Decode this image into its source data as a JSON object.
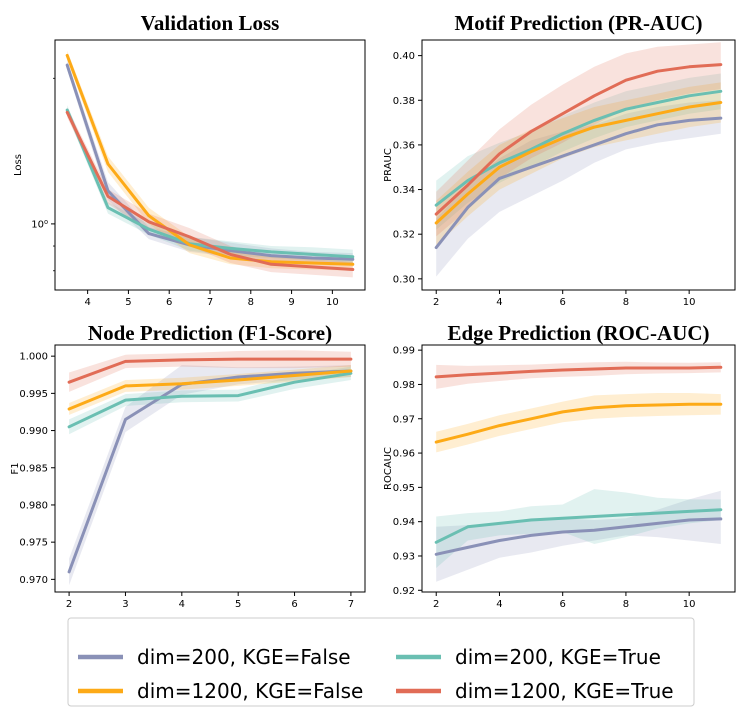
{
  "colors": {
    "s200F": "#8a91b7",
    "s200T": "#6abfb2",
    "s1200F": "#fdaa17",
    "s1200T": "#e16c56"
  },
  "legend": {
    "items": [
      {
        "key": "s200F",
        "label": "dim=200, KGE=False"
      },
      {
        "key": "s200T",
        "label": "dim=200, KGE=True"
      },
      {
        "key": "s1200F",
        "label": "dim=1200, KGE=False"
      },
      {
        "key": "s1200T",
        "label": "dim=1200, KGE=True"
      }
    ]
  },
  "chart_data": [
    {
      "id": "val",
      "type": "line",
      "title": "Validation Loss",
      "ylabel": "Loss",
      "yscale": "log",
      "xlim": [
        3.2,
        10.8
      ],
      "ylim": [
        0.73,
        2.4
      ],
      "xticks": [
        4,
        5,
        6,
        7,
        8,
        9,
        10
      ],
      "xtick_labels": [
        "4",
        "5",
        "6",
        "7",
        "8",
        "9",
        "10"
      ],
      "yticks": [
        1.0
      ],
      "ytick_labels": [
        "10⁰"
      ],
      "x": [
        3.5,
        4.5,
        5.5,
        6.5,
        7.5,
        8.5,
        9.5,
        10.5
      ],
      "series": [
        {
          "key": "s200F",
          "name": "dim=200, KGE=False",
          "values": [
            2.13,
            1.17,
            0.955,
            0.905,
            0.88,
            0.86,
            0.85,
            0.845
          ],
          "lower": [
            2.08,
            1.12,
            0.93,
            0.875,
            0.855,
            0.84,
            0.83,
            0.825
          ],
          "upper": [
            2.18,
            1.22,
            0.985,
            0.94,
            0.915,
            0.89,
            0.875,
            0.87
          ]
        },
        {
          "key": "s200T",
          "name": "dim=200, KGE=True",
          "values": [
            1.72,
            1.08,
            0.975,
            0.91,
            0.89,
            0.875,
            0.865,
            0.855
          ],
          "lower": [
            1.68,
            1.05,
            0.95,
            0.88,
            0.86,
            0.85,
            0.84,
            0.83
          ],
          "upper": [
            1.76,
            1.11,
            1.0,
            0.94,
            0.92,
            0.9,
            0.895,
            0.885
          ]
        },
        {
          "key": "s1200F",
          "name": "dim=1200, KGE=False",
          "values": [
            2.23,
            1.33,
            1.04,
            0.905,
            0.85,
            0.835,
            0.83,
            0.825
          ],
          "lower": [
            2.18,
            1.28,
            1.0,
            0.87,
            0.825,
            0.81,
            0.805,
            0.8
          ],
          "upper": [
            2.28,
            1.38,
            1.08,
            0.94,
            0.875,
            0.86,
            0.855,
            0.85
          ]
        },
        {
          "key": "s1200T",
          "name": "dim=1200, KGE=True",
          "values": [
            1.7,
            1.14,
            1.01,
            0.94,
            0.865,
            0.825,
            0.815,
            0.805
          ],
          "lower": [
            1.66,
            1.1,
            0.97,
            0.9,
            0.83,
            0.795,
            0.785,
            0.775
          ],
          "upper": [
            1.74,
            1.18,
            1.05,
            0.98,
            0.9,
            0.855,
            0.845,
            0.835
          ]
        }
      ]
    },
    {
      "id": "motif",
      "type": "line",
      "title": "Motif Prediction (PR-AUC)",
      "ylabel": "PRAUC",
      "yscale": "linear",
      "xlim": [
        1.55,
        11.45
      ],
      "ylim": [
        0.295,
        0.407
      ],
      "xticks": [
        2,
        4,
        6,
        8,
        10
      ],
      "xtick_labels": [
        "2",
        "4",
        "6",
        "8",
        "10"
      ],
      "yticks": [
        0.3,
        0.32,
        0.34,
        0.36,
        0.38,
        0.4
      ],
      "ytick_labels": [
        "0.30",
        "0.32",
        "0.34",
        "0.36",
        "0.38",
        "0.40"
      ],
      "x": [
        2,
        3,
        4,
        5,
        6,
        7,
        8,
        9,
        10,
        11
      ],
      "series": [
        {
          "key": "s200F",
          "name": "dim=200, KGE=False",
          "values": [
            0.314,
            0.332,
            0.345,
            0.35,
            0.355,
            0.36,
            0.365,
            0.369,
            0.371,
            0.372
          ],
          "lower": [
            0.301,
            0.318,
            0.33,
            0.337,
            0.344,
            0.352,
            0.358,
            0.361,
            0.363,
            0.365
          ],
          "upper": [
            0.327,
            0.342,
            0.354,
            0.362,
            0.366,
            0.369,
            0.374,
            0.377,
            0.379,
            0.38
          ]
        },
        {
          "key": "s200T",
          "name": "dim=200, KGE=True",
          "values": [
            0.333,
            0.344,
            0.352,
            0.358,
            0.365,
            0.371,
            0.376,
            0.379,
            0.382,
            0.384
          ],
          "lower": [
            0.322,
            0.334,
            0.343,
            0.35,
            0.357,
            0.363,
            0.368,
            0.371,
            0.374,
            0.376
          ],
          "upper": [
            0.344,
            0.355,
            0.361,
            0.366,
            0.373,
            0.379,
            0.384,
            0.387,
            0.39,
            0.392
          ]
        },
        {
          "key": "s1200F",
          "name": "dim=1200, KGE=False",
          "values": [
            0.325,
            0.338,
            0.35,
            0.357,
            0.363,
            0.368,
            0.371,
            0.374,
            0.377,
            0.379
          ],
          "lower": [
            0.315,
            0.328,
            0.34,
            0.347,
            0.354,
            0.359,
            0.362,
            0.365,
            0.368,
            0.37
          ],
          "upper": [
            0.335,
            0.348,
            0.36,
            0.367,
            0.372,
            0.377,
            0.38,
            0.383,
            0.386,
            0.388
          ]
        },
        {
          "key": "s1200T",
          "name": "dim=1200, KGE=True",
          "values": [
            0.329,
            0.342,
            0.356,
            0.366,
            0.374,
            0.382,
            0.389,
            0.393,
            0.395,
            0.396
          ],
          "lower": [
            0.319,
            0.331,
            0.345,
            0.354,
            0.361,
            0.369,
            0.376,
            0.38,
            0.383,
            0.385
          ],
          "upper": [
            0.339,
            0.353,
            0.367,
            0.378,
            0.387,
            0.395,
            0.401,
            0.404,
            0.405,
            0.406
          ]
        }
      ]
    },
    {
      "id": "node",
      "type": "line",
      "title": "Node Prediction (F1-Score)",
      "ylabel": "F1",
      "yscale": "linear",
      "xlim": [
        1.75,
        7.25
      ],
      "ylim": [
        0.9683,
        1.0015
      ],
      "xticks": [
        2,
        3,
        4,
        5,
        6,
        7
      ],
      "xtick_labels": [
        "2",
        "3",
        "4",
        "5",
        "6",
        "7"
      ],
      "yticks": [
        0.97,
        0.975,
        0.98,
        0.985,
        0.99,
        0.995,
        1.0
      ],
      "ytick_labels": [
        "0.970",
        "0.975",
        "0.980",
        "0.985",
        "0.990",
        "0.995",
        "1.000"
      ],
      "x": [
        2,
        3,
        4,
        5,
        6,
        7
      ],
      "series": [
        {
          "key": "s200F",
          "name": "dim=200, KGE=False",
          "values": [
            0.971,
            0.9915,
            0.9962,
            0.9972,
            0.9977,
            0.998
          ],
          "lower": [
            0.9692,
            0.9898,
            0.9948,
            0.9962,
            0.9968,
            0.9972
          ],
          "upper": [
            0.9728,
            0.9932,
            0.9988,
            0.9985,
            0.9986,
            0.9988
          ]
        },
        {
          "key": "s200T",
          "name": "dim=200, KGE=True",
          "values": [
            0.9905,
            0.9941,
            0.9946,
            0.9947,
            0.9965,
            0.9977
          ],
          "lower": [
            0.9895,
            0.9933,
            0.9938,
            0.9939,
            0.9956,
            0.9968
          ],
          "upper": [
            0.9915,
            0.9949,
            0.9954,
            0.9955,
            0.9974,
            0.9986
          ]
        },
        {
          "key": "s1200F",
          "name": "dim=1200, KGE=False",
          "values": [
            0.9929,
            0.996,
            0.9963,
            0.9968,
            0.9974,
            0.998
          ],
          "lower": [
            0.9921,
            0.9952,
            0.9955,
            0.996,
            0.9966,
            0.9972
          ],
          "upper": [
            0.9937,
            0.9968,
            0.9971,
            0.9976,
            0.9982,
            0.9988
          ]
        },
        {
          "key": "s1200T",
          "name": "dim=1200, KGE=True",
          "values": [
            0.9965,
            0.9993,
            0.9995,
            0.9996,
            0.9996,
            0.9996
          ],
          "lower": [
            0.9952,
            0.9984,
            0.9986,
            0.9984,
            0.9984,
            0.9986
          ],
          "upper": [
            0.9978,
            1.0002,
            1.0004,
            1.0007,
            1.0008,
            1.0006
          ]
        }
      ]
    },
    {
      "id": "edge",
      "type": "line",
      "title": "Edge Prediction (ROC-AUC)",
      "ylabel": "ROCAUC",
      "yscale": "linear",
      "xlim": [
        1.55,
        11.45
      ],
      "ylim": [
        0.9195,
        0.9915
      ],
      "xticks": [
        2,
        4,
        6,
        8,
        10
      ],
      "xtick_labels": [
        "2",
        "4",
        "6",
        "8",
        "10"
      ],
      "yticks": [
        0.92,
        0.93,
        0.94,
        0.95,
        0.96,
        0.97,
        0.98,
        0.99
      ],
      "ytick_labels": [
        "0.92",
        "0.93",
        "0.94",
        "0.95",
        "0.96",
        "0.97",
        "0.98",
        "0.99"
      ],
      "x": [
        2,
        3,
        4,
        5,
        6,
        7,
        8,
        9,
        10,
        11
      ],
      "series": [
        {
          "key": "s200F",
          "name": "dim=200, KGE=False",
          "values": [
            0.9305,
            0.9325,
            0.9345,
            0.936,
            0.937,
            0.9375,
            0.9385,
            0.9395,
            0.9405,
            0.9408
          ],
          "lower": [
            0.9225,
            0.926,
            0.9295,
            0.931,
            0.933,
            0.9345,
            0.936,
            0.9355,
            0.9345,
            0.9335
          ],
          "upper": [
            0.9385,
            0.939,
            0.9395,
            0.941,
            0.941,
            0.9405,
            0.941,
            0.9435,
            0.9465,
            0.949
          ]
        },
        {
          "key": "s200T",
          "name": "dim=200, KGE=True",
          "values": [
            0.934,
            0.9385,
            0.9395,
            0.9405,
            0.941,
            0.9415,
            0.942,
            0.9425,
            0.943,
            0.9435
          ],
          "lower": [
            0.9265,
            0.9345,
            0.936,
            0.9365,
            0.937,
            0.9335,
            0.9355,
            0.938,
            0.9395,
            0.9405
          ],
          "upper": [
            0.9415,
            0.9425,
            0.943,
            0.9445,
            0.945,
            0.9495,
            0.9485,
            0.947,
            0.9465,
            0.9465
          ]
        },
        {
          "key": "s1200F",
          "name": "dim=1200, KGE=False",
          "values": [
            0.9632,
            0.9655,
            0.968,
            0.97,
            0.972,
            0.9732,
            0.9738,
            0.974,
            0.9742,
            0.9742
          ],
          "lower": [
            0.9602,
            0.9625,
            0.965,
            0.967,
            0.969,
            0.97,
            0.9705,
            0.9708,
            0.971,
            0.9712
          ],
          "upper": [
            0.9662,
            0.9685,
            0.971,
            0.973,
            0.975,
            0.9768,
            0.9772,
            0.9775,
            0.9775,
            0.9772
          ]
        },
        {
          "key": "s1200T",
          "name": "dim=1200, KGE=True",
          "values": [
            0.9822,
            0.9828,
            0.9833,
            0.9838,
            0.9842,
            0.9845,
            0.9848,
            0.9848,
            0.9848,
            0.985
          ],
          "lower": [
            0.9787,
            0.9802,
            0.981,
            0.9818,
            0.9822,
            0.9825,
            0.983,
            0.9832,
            0.9833,
            0.9835
          ],
          "upper": [
            0.9857,
            0.9854,
            0.9856,
            0.9858,
            0.9862,
            0.9865,
            0.9866,
            0.9864,
            0.9863,
            0.9865
          ]
        }
      ]
    }
  ]
}
